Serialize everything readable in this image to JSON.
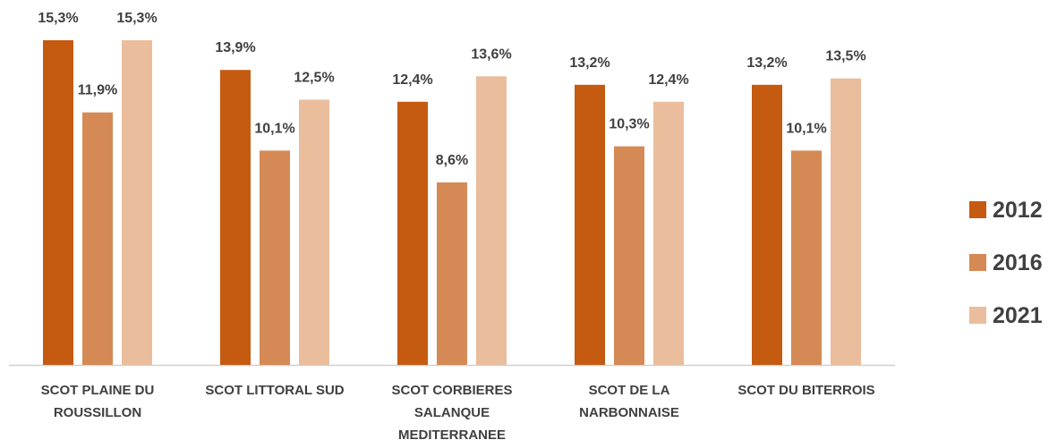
{
  "chart_data": {
    "type": "bar",
    "categories": [
      "SCOT PLAINE DU ROUSSILLON",
      "SCOT LITTORAL SUD",
      "SCOT CORBIERES SALANQUE MEDITERRANEE",
      "SCOT DE LA NARBONNAISE",
      "SCOT DU BITERROIS"
    ],
    "series": [
      {
        "name": "2012",
        "color": "#c55a11",
        "values": [
          15.3,
          13.9,
          12.4,
          13.2,
          13.2
        ],
        "value_labels": [
          "15,3%",
          "13,9%",
          "12,4%",
          "13,2%",
          "13,2%"
        ]
      },
      {
        "name": "2016",
        "color": "#d58a56",
        "values": [
          11.9,
          10.1,
          8.6,
          10.3,
          10.1
        ],
        "value_labels": [
          "11,9%",
          "10,1%",
          "8,6%",
          "10,3%",
          "10,1%"
        ]
      },
      {
        "name": "2021",
        "color": "#eabd9c",
        "values": [
          15.3,
          12.5,
          13.6,
          12.4,
          13.5
        ],
        "value_labels": [
          "15,3%",
          "12,5%",
          "13,6%",
          "12,4%",
          "13,5%"
        ]
      }
    ],
    "legend": "right"
  }
}
